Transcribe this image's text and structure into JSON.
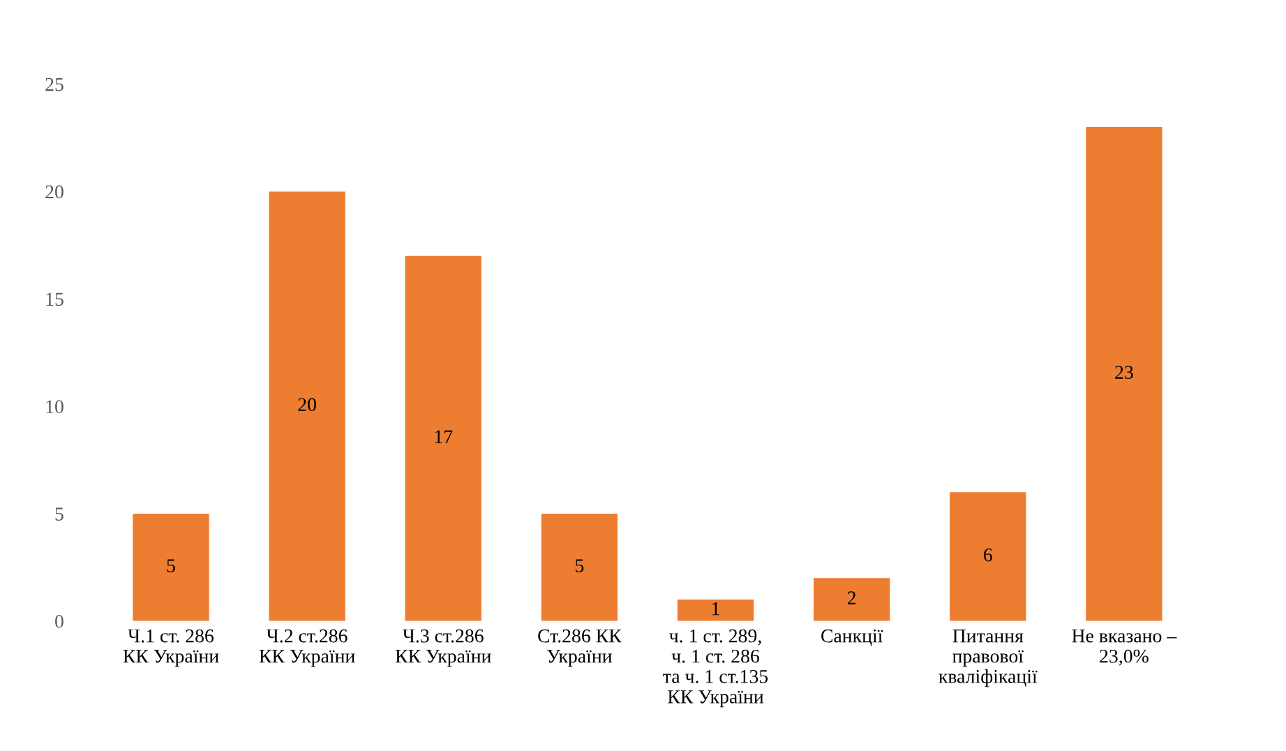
{
  "chart_data": {
    "type": "bar",
    "categories": [
      "Ч.1 ст. 286\nКК України",
      "Ч.2 ст.286\nКК України",
      "Ч.3 ст.286\nКК України",
      "Ст.286 КК\nУкраїни",
      "ч. 1 ст. 289,\nч. 1 ст. 286\nта ч. 1 ст.135\nКК України",
      "Санкції",
      "Питання\nправової\nкваліфікації",
      "Не вказано –\n23,0%"
    ],
    "values": [
      5,
      20,
      17,
      5,
      1,
      2,
      6,
      23
    ],
    "color": "#ed7d31",
    "ylim": [
      0,
      25
    ],
    "yticks": [
      0,
      5,
      10,
      15,
      20,
      25
    ],
    "grid": false,
    "data_labels": true
  }
}
